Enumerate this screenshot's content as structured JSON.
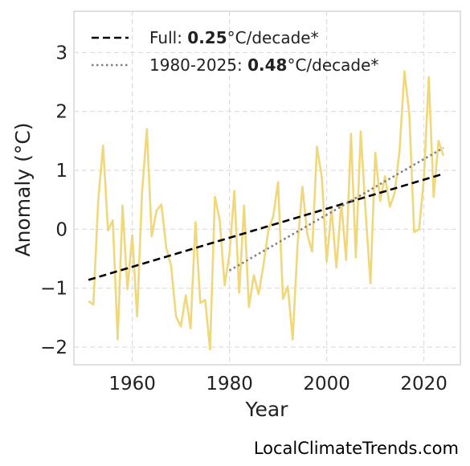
{
  "chart_data": {
    "type": "line",
    "xlabel": "Year",
    "ylabel": "Anomaly (°C)",
    "xlim": [
      1948,
      2027.5
    ],
    "ylim": [
      -2.3,
      3.7
    ],
    "xticks": [
      1960,
      1980,
      2000,
      2020
    ],
    "yticks": [
      -2,
      -1,
      0,
      1,
      2,
      3
    ],
    "grid": true,
    "legend_position": "top-left",
    "colors": {
      "series": "#f0d77a",
      "full_trend": "#000000",
      "recent_trend": "#808080"
    },
    "legend": [
      {
        "prefix": "Full: ",
        "value": "0.25",
        "suffix": "°C/decade*",
        "style": "dashed"
      },
      {
        "prefix": "1980-2025: ",
        "value": "0.48",
        "suffix": "°C/decade*",
        "style": "dotted"
      }
    ],
    "series": [
      {
        "x": [
          1951,
          1952,
          1953,
          1954,
          1955,
          1956,
          1957,
          1958,
          1959,
          1960,
          1961,
          1962,
          1963,
          1964,
          1965,
          1966,
          1967,
          1968,
          1969,
          1970,
          1971,
          1972,
          1973,
          1974,
          1975,
          1976,
          1977,
          1978,
          1979,
          1980,
          1981,
          1982,
          1983,
          1984,
          1985,
          1986,
          1987,
          1988,
          1989,
          1990,
          1991,
          1992,
          1993,
          1994,
          1995,
          1996,
          1997,
          1998,
          1999,
          2000,
          2001,
          2002,
          2003,
          2004,
          2005,
          2006,
          2007,
          2008,
          2009,
          2010,
          2011,
          2012,
          2013,
          2014,
          2015,
          2016,
          2017,
          2018,
          2019,
          2020,
          2021,
          2022,
          2023,
          2024
        ],
        "values": [
          -1.22,
          -1.28,
          0.5,
          1.42,
          -0.02,
          0.15,
          -1.87,
          0.4,
          -1.02,
          -0.1,
          -1.48,
          0.6,
          1.7,
          -0.12,
          0.32,
          0.42,
          -0.32,
          -0.62,
          -1.48,
          -1.65,
          -1.12,
          -1.68,
          0.12,
          -1.25,
          -1.2,
          -2.04,
          0.55,
          0.15,
          -0.95,
          -0.42,
          0.65,
          -1.08,
          0.4,
          -1.32,
          -0.78,
          -1.1,
          -0.6,
          -0.02,
          0.22,
          0.8,
          -1.18,
          -0.97,
          -1.87,
          -0.28,
          0.72,
          -0.08,
          -0.38,
          1.4,
          0.88,
          -0.55,
          0.35,
          -0.65,
          0.45,
          -0.52,
          1.62,
          -0.48,
          1.66,
          0.3,
          -0.92,
          1.3,
          0.48,
          0.9,
          0.38,
          0.62,
          1.35,
          2.68,
          1.95,
          -0.05,
          0.0,
          0.85,
          2.58,
          0.55,
          1.5,
          1.25
        ]
      },
      {
        "x": [
          1951,
          2024
        ],
        "values": [
          -0.86,
          0.94
        ]
      },
      {
        "x": [
          1980,
          2024
        ],
        "values": [
          -0.7,
          1.38
        ]
      }
    ]
  },
  "footer": {
    "watermark": "LocalClimateTrends.com"
  }
}
